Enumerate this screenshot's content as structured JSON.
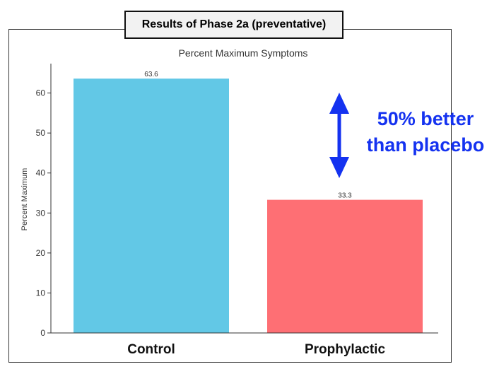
{
  "header": {
    "title": "Results of Phase 2a (preventative)"
  },
  "annotation": {
    "line1": "50% better",
    "line2": "than placebo",
    "color": "#1432f0"
  },
  "chart_data": {
    "type": "bar",
    "title": "Percent Maximum Symptoms",
    "xlabel": "",
    "ylabel": "Percent Maximum",
    "categories": [
      "Control",
      "Prophylactic"
    ],
    "values": [
      63.6,
      33.3
    ],
    "value_labels": [
      "63.6",
      "33.3"
    ],
    "colors": [
      "#62c8e6",
      "#fe6f74"
    ],
    "ylim": [
      0,
      67
    ],
    "yticks": [
      0,
      10,
      20,
      30,
      40,
      50,
      60
    ],
    "grid": false,
    "legend": "none"
  }
}
